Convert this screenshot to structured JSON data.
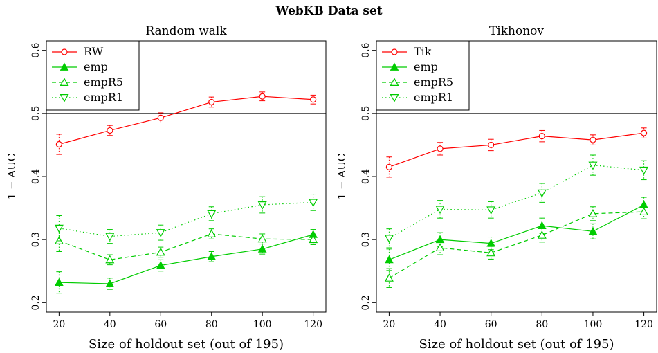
{
  "figure_title": "WebKB Data set",
  "chart_data": [
    {
      "type": "line",
      "title": "Random walk",
      "xlabel": "Size of holdout set (out of 195)",
      "ylabel": "1 − AUC",
      "x": [
        20,
        40,
        60,
        80,
        100,
        120
      ],
      "xlim": [
        15,
        125
      ],
      "ylim": [
        0.185,
        0.615
      ],
      "xticks": [
        "20",
        "40",
        "60",
        "80",
        "100",
        "120"
      ],
      "yticks": [
        "0.2",
        "0.3",
        "0.4",
        "0.5",
        "0.6"
      ],
      "reference_line": 0.5,
      "legend_position": "top-left",
      "series": [
        {
          "name": "RW",
          "color": "#ff0000",
          "marker": "circle",
          "dash": "solid",
          "values": [
            0.451,
            0.473,
            0.493,
            0.518,
            0.527,
            0.522
          ],
          "err": [
            0.016,
            0.008,
            0.008,
            0.008,
            0.007,
            0.007
          ]
        },
        {
          "name": "emp",
          "color": "#00cc00",
          "marker": "triangle-up-filled",
          "dash": "solid",
          "values": [
            0.232,
            0.23,
            0.259,
            0.273,
            0.285,
            0.308
          ],
          "err": [
            0.017,
            0.009,
            0.009,
            0.008,
            0.008,
            0.008
          ]
        },
        {
          "name": "empR5",
          "color": "#00cc00",
          "marker": "triangle-up-open",
          "dash": "dashed",
          "values": [
            0.298,
            0.268,
            0.28,
            0.309,
            0.301,
            0.3
          ],
          "err": [
            0.017,
            0.008,
            0.008,
            0.008,
            0.008,
            0.008
          ]
        },
        {
          "name": "empR1",
          "color": "#00cc00",
          "marker": "triangle-down-open",
          "dash": "dotted",
          "values": [
            0.318,
            0.305,
            0.311,
            0.341,
            0.355,
            0.359
          ],
          "err": [
            0.02,
            0.011,
            0.012,
            0.011,
            0.013,
            0.013
          ]
        }
      ]
    },
    {
      "type": "line",
      "title": "Tikhonov",
      "xlabel": "Size of holdout set (out of 195)",
      "ylabel": "1 − AUC",
      "x": [
        20,
        40,
        60,
        80,
        100,
        120
      ],
      "xlim": [
        15,
        125
      ],
      "ylim": [
        0.185,
        0.615
      ],
      "xticks": [
        "20",
        "40",
        "60",
        "80",
        "100",
        "120"
      ],
      "yticks": [
        "0.2",
        "0.3",
        "0.4",
        "0.5",
        "0.6"
      ],
      "reference_line": 0.5,
      "legend_position": "top-left",
      "series": [
        {
          "name": "Tik",
          "color": "#ff0000",
          "marker": "circle",
          "dash": "solid",
          "values": [
            0.415,
            0.444,
            0.45,
            0.464,
            0.458,
            0.469
          ],
          "err": [
            0.016,
            0.01,
            0.009,
            0.009,
            0.008,
            0.008
          ]
        },
        {
          "name": "emp",
          "color": "#00cc00",
          "marker": "triangle-up-filled",
          "dash": "solid",
          "values": [
            0.268,
            0.3,
            0.294,
            0.322,
            0.313,
            0.355
          ],
          "err": [
            0.017,
            0.011,
            0.01,
            0.012,
            0.012,
            0.012
          ]
        },
        {
          "name": "empR5",
          "color": "#00cc00",
          "marker": "triangle-up-open",
          "dash": "dashed",
          "values": [
            0.239,
            0.287,
            0.279,
            0.307,
            0.341,
            0.344
          ],
          "err": [
            0.015,
            0.011,
            0.01,
            0.011,
            0.011,
            0.011
          ]
        },
        {
          "name": "empR1",
          "color": "#00cc00",
          "marker": "triangle-down-open",
          "dash": "dotted",
          "values": [
            0.302,
            0.348,
            0.347,
            0.374,
            0.418,
            0.41
          ],
          "err": [
            0.015,
            0.014,
            0.013,
            0.015,
            0.016,
            0.015
          ]
        }
      ]
    }
  ]
}
